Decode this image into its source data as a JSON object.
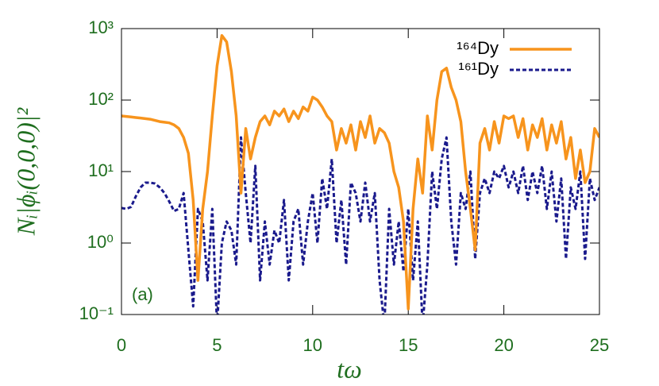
{
  "chart_data": {
    "type": "line",
    "x_label": "tω",
    "y_label": "Nᵢ|ϕᵢ(0,0,0)|²",
    "annotation": "(a)",
    "log_y": true,
    "legend": "top-right",
    "xlim": [
      0,
      25
    ],
    "xticks": [
      0,
      5,
      10,
      15,
      20,
      25
    ],
    "ylim": [
      0.1,
      1000
    ],
    "yticks": [
      {
        "value": 0.1,
        "label": "10⁻¹"
      },
      {
        "value": 1,
        "label": "10⁰"
      },
      {
        "value": 10,
        "label": "10¹"
      },
      {
        "value": 100,
        "label": "10²"
      },
      {
        "value": 1000,
        "label": "10³"
      }
    ],
    "x": [
      0,
      0.25,
      0.5,
      0.75,
      1,
      1.25,
      1.5,
      1.75,
      2,
      2.25,
      2.5,
      2.75,
      3,
      3.25,
      3.5,
      3.75,
      4,
      4.25,
      4.5,
      4.75,
      5,
      5.25,
      5.5,
      5.75,
      6,
      6.25,
      6.5,
      6.75,
      7,
      7.25,
      7.5,
      7.75,
      8,
      8.25,
      8.5,
      8.75,
      9,
      9.25,
      9.5,
      9.75,
      10,
      10.25,
      10.5,
      10.75,
      11,
      11.25,
      11.5,
      11.75,
      12,
      12.25,
      12.5,
      12.75,
      13,
      13.25,
      13.5,
      13.75,
      14,
      14.25,
      14.5,
      14.75,
      15,
      15.25,
      15.5,
      15.75,
      16,
      16.25,
      16.5,
      16.75,
      17,
      17.25,
      17.5,
      17.75,
      18,
      18.25,
      18.5,
      18.75,
      19,
      19.25,
      19.5,
      19.75,
      20,
      20.25,
      20.5,
      20.75,
      21,
      21.25,
      21.5,
      21.75,
      22,
      22.25,
      22.5,
      22.75,
      23,
      23.25,
      23.5,
      23.75,
      24,
      24.25,
      24.5,
      24.75,
      25
    ],
    "series": [
      {
        "name": "¹⁶⁴Dy",
        "color": "#f7941d",
        "dash": false,
        "values": [
          60,
          59,
          58,
          57,
          56,
          55,
          54,
          52,
          50,
          49,
          48,
          45,
          40,
          30,
          18,
          4,
          0.3,
          3,
          10,
          60,
          300,
          800,
          650,
          250,
          60,
          5,
          40,
          15,
          30,
          50,
          60,
          45,
          70,
          60,
          75,
          50,
          70,
          55,
          80,
          70,
          110,
          100,
          80,
          60,
          50,
          20,
          40,
          25,
          45,
          20,
          50,
          30,
          60,
          25,
          40,
          35,
          25,
          10,
          6,
          2,
          0.12,
          3,
          15,
          5,
          60,
          20,
          100,
          250,
          280,
          150,
          100,
          50,
          10,
          3,
          0.8,
          25,
          40,
          20,
          50,
          25,
          60,
          55,
          60,
          30,
          55,
          20,
          45,
          30,
          55,
          20,
          45,
          25,
          50,
          15,
          30,
          8,
          20,
          7,
          10,
          40,
          30
        ]
      },
      {
        "name": "¹⁶¹Dy",
        "color": "#1a1a8c",
        "dash": true,
        "values": [
          3.1,
          3,
          3.2,
          4.5,
          6,
          7,
          7,
          6.8,
          6,
          5,
          3.8,
          2.8,
          3,
          5,
          0.8,
          0.13,
          3,
          2,
          0.3,
          3,
          0.07,
          1,
          2,
          1.5,
          0.5,
          30,
          5,
          1,
          12,
          0.3,
          2,
          0.5,
          1.5,
          1,
          4,
          0.3,
          2,
          3,
          0.5,
          2,
          5,
          1,
          8,
          3,
          15,
          1,
          4,
          0.5,
          7,
          5,
          2,
          7,
          2,
          5,
          0.3,
          0.07,
          3,
          0.5,
          2,
          0.4,
          3,
          0.3,
          2,
          0.07,
          0.5,
          10,
          3,
          15,
          30,
          2,
          0.5,
          5,
          3,
          10,
          0.6,
          5,
          8,
          5,
          10,
          8,
          12,
          6,
          10,
          5,
          12,
          4,
          10,
          5,
          12,
          3,
          10,
          2,
          8,
          0.6,
          6,
          3,
          10,
          0.6,
          8,
          4,
          6
        ]
      }
    ]
  }
}
